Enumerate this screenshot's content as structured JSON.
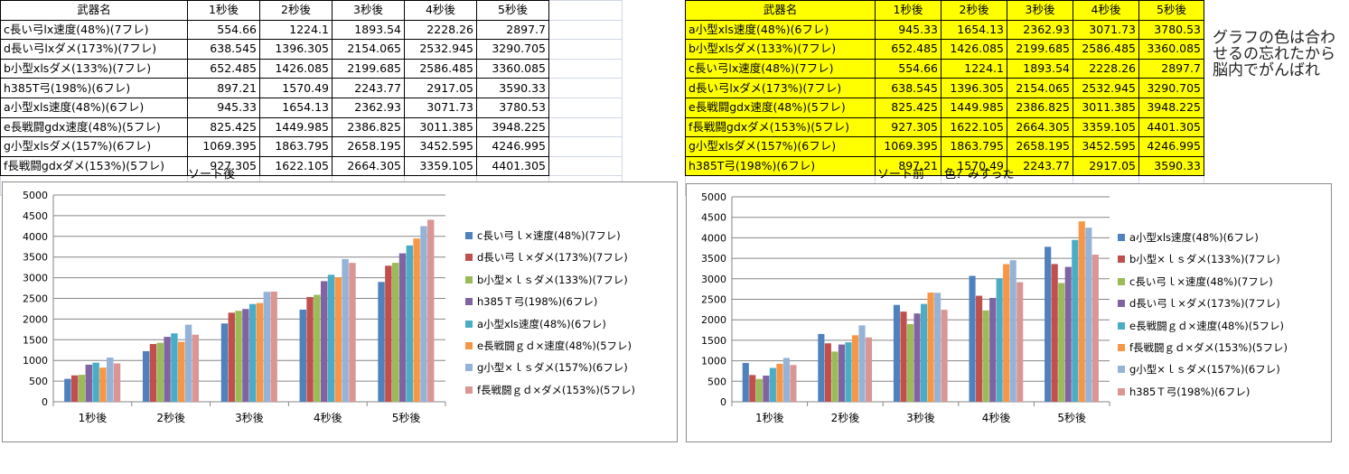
{
  "left_table": {
    "headers": [
      "武器名",
      "1秒後",
      "2秒後",
      "3秒後",
      "4秒後",
      "5秒後"
    ],
    "rows": [
      [
        "c長い弓lx速度(48%)(7フレ)",
        "554.66",
        "1224.1",
        "1893.54",
        "2228.26",
        "2897.7"
      ],
      [
        "d長い弓lxダメ(173%)(7フレ)",
        "638.545",
        "1396.305",
        "2154.065",
        "2532.945",
        "3290.705"
      ],
      [
        "b小型xlsダメ(133%)(7フレ)",
        "652.485",
        "1426.085",
        "2199.685",
        "2586.485",
        "3360.085"
      ],
      [
        "h385T弓(198%)(6フレ)",
        "897.21",
        "1570.49",
        "2243.77",
        "2917.05",
        "3590.33"
      ],
      [
        "a小型xls速度(48%)(6フレ)",
        "945.33",
        "1654.13",
        "2362.93",
        "3071.73",
        "3780.53"
      ],
      [
        "e長戦闘gdx速度(48%)(5フレ)",
        "825.425",
        "1449.985",
        "2386.825",
        "3011.385",
        "3948.225"
      ],
      [
        "g小型xlsダメ(157%)(6フレ)",
        "1069.395",
        "1863.795",
        "2658.195",
        "3452.595",
        "4246.995"
      ],
      [
        "f長戦闘gdxダメ(153%)(5フレ)",
        "927.305",
        "1622.105",
        "2664.305",
        "3359.105",
        "4401.305"
      ]
    ],
    "caption": "ソート後"
  },
  "right_table": {
    "headers": [
      "武器名",
      "1秒後",
      "2秒後",
      "3秒後",
      "4秒後",
      "5秒後"
    ],
    "rows": [
      [
        "a小型xls速度(48%)(6フレ)",
        "945.33",
        "1654.13",
        "2362.93",
        "3071.73",
        "3780.53"
      ],
      [
        "b小型xlsダメ(133%)(7フレ)",
        "652.485",
        "1426.085",
        "2199.685",
        "2586.485",
        "3360.085"
      ],
      [
        "c長い弓lx速度(48%)(7フレ)",
        "554.66",
        "1224.1",
        "1893.54",
        "2228.26",
        "2897.7"
      ],
      [
        "d長い弓lxダメ(173%)(7フレ)",
        "638.545",
        "1396.305",
        "2154.065",
        "2532.945",
        "3290.705"
      ],
      [
        "e長戦闘gdx速度(48%)(5フレ)",
        "825.425",
        "1449.985",
        "2386.825",
        "3011.385",
        "3948.225"
      ],
      [
        "f長戦闘gdxダメ(153%)(5フレ)",
        "927.305",
        "1622.105",
        "2664.305",
        "3359.105",
        "4401.305"
      ],
      [
        "g小型xlsダメ(157%)(6フレ)",
        "1069.395",
        "1863.795",
        "2658.195",
        "3452.595",
        "4246.995"
      ],
      [
        "h385T弓(198%)(6フレ)",
        "897.21",
        "1570.49",
        "2243.77",
        "2917.05",
        "3590.33"
      ]
    ],
    "caption": "ソート前",
    "caption2": "色？みすった",
    "highlight": "#ffff00"
  },
  "note": "グラフの色は合わせるの忘れたから脳内でがんばれ",
  "chart_data": [
    {
      "type": "bar",
      "categories": [
        "1秒後",
        "2秒後",
        "3秒後",
        "4秒後",
        "5秒後"
      ],
      "ylim": [
        0,
        5000
      ],
      "yticks": [
        "0",
        "500",
        "1000",
        "1500",
        "2000",
        "2500",
        "3000",
        "3500",
        "4000",
        "4500",
        "5000"
      ],
      "grid": true,
      "legend": "right",
      "series": [
        {
          "name": "c長い弓ｌ×速度(48%)(7フレ)",
          "color": "#4f81bd",
          "values": [
            554.66,
            1224.1,
            1893.54,
            2228.26,
            2897.7
          ]
        },
        {
          "name": "d長い弓ｌ×ダメ(173%)(7フレ)",
          "color": "#c0504d",
          "values": [
            638.545,
            1396.305,
            2154.065,
            2532.945,
            3290.705
          ]
        },
        {
          "name": "b小型×ｌｓダメ(133%)(7フレ)",
          "color": "#9bbb59",
          "values": [
            652.485,
            1426.085,
            2199.685,
            2586.485,
            3360.085
          ]
        },
        {
          "name": "h385Ｔ弓(198%)(6フレ)",
          "color": "#8064a2",
          "values": [
            897.21,
            1570.49,
            2243.77,
            2917.05,
            3590.33
          ]
        },
        {
          "name": "a小型xls速度(48%)(6フレ)",
          "color": "#4bacc6",
          "values": [
            945.33,
            1654.13,
            2362.93,
            3071.73,
            3780.53
          ]
        },
        {
          "name": "e長戦闘ｇｄ×速度(48%)(5フレ)",
          "color": "#f79646",
          "values": [
            825.425,
            1449.985,
            2386.825,
            3011.385,
            3948.225
          ]
        },
        {
          "name": "g小型×ｌｓダメ(157%)(6フレ)",
          "color": "#95b3d7",
          "values": [
            1069.395,
            1863.795,
            2658.195,
            3452.595,
            4246.995
          ]
        },
        {
          "name": "f長戦闘ｇｄ×ダメ(153%)(5フレ)",
          "color": "#d99694",
          "values": [
            927.305,
            1622.105,
            2664.305,
            3359.105,
            4401.305
          ]
        }
      ]
    },
    {
      "type": "bar",
      "categories": [
        "1秒後",
        "2秒後",
        "3秒後",
        "4秒後",
        "5秒後"
      ],
      "ylim": [
        0,
        5000
      ],
      "yticks": [
        "0",
        "500",
        "1000",
        "1500",
        "2000",
        "2500",
        "3000",
        "3500",
        "4000",
        "4500",
        "5000"
      ],
      "grid": true,
      "legend": "right",
      "series": [
        {
          "name": "a小型xls速度(48%)(6フレ)",
          "color": "#4f81bd",
          "values": [
            945.33,
            1654.13,
            2362.93,
            3071.73,
            3780.53
          ]
        },
        {
          "name": "b小型×ｌｓダメ(133%)(7フレ)",
          "color": "#c0504d",
          "values": [
            652.485,
            1426.085,
            2199.685,
            2586.485,
            3360.085
          ]
        },
        {
          "name": "c長い弓ｌ×速度(48%)(7フレ)",
          "color": "#9bbb59",
          "values": [
            554.66,
            1224.1,
            1893.54,
            2228.26,
            2897.7
          ]
        },
        {
          "name": "d長い弓ｌ×ダメ(173%)(7フレ)",
          "color": "#8064a2",
          "values": [
            638.545,
            1396.305,
            2154.065,
            2532.945,
            3290.705
          ]
        },
        {
          "name": "e長戦闘ｇｄ×速度(48%)(5フレ)",
          "color": "#4bacc6",
          "values": [
            825.425,
            1449.985,
            2386.825,
            3011.385,
            3948.225
          ]
        },
        {
          "name": "f長戦闘ｇｄ×ダメ(153%)(5フレ)",
          "color": "#f79646",
          "values": [
            927.305,
            1622.105,
            2664.305,
            3359.105,
            4401.305
          ]
        },
        {
          "name": "g小型×ｌｓダメ(157%)(6フレ)",
          "color": "#95b3d7",
          "values": [
            1069.395,
            1863.795,
            2658.195,
            3452.595,
            4246.995
          ]
        },
        {
          "name": "h385Ｔ弓(198%)(6フレ)",
          "color": "#d99694",
          "values": [
            897.21,
            1570.49,
            2243.77,
            2917.05,
            3590.33
          ]
        }
      ]
    }
  ]
}
